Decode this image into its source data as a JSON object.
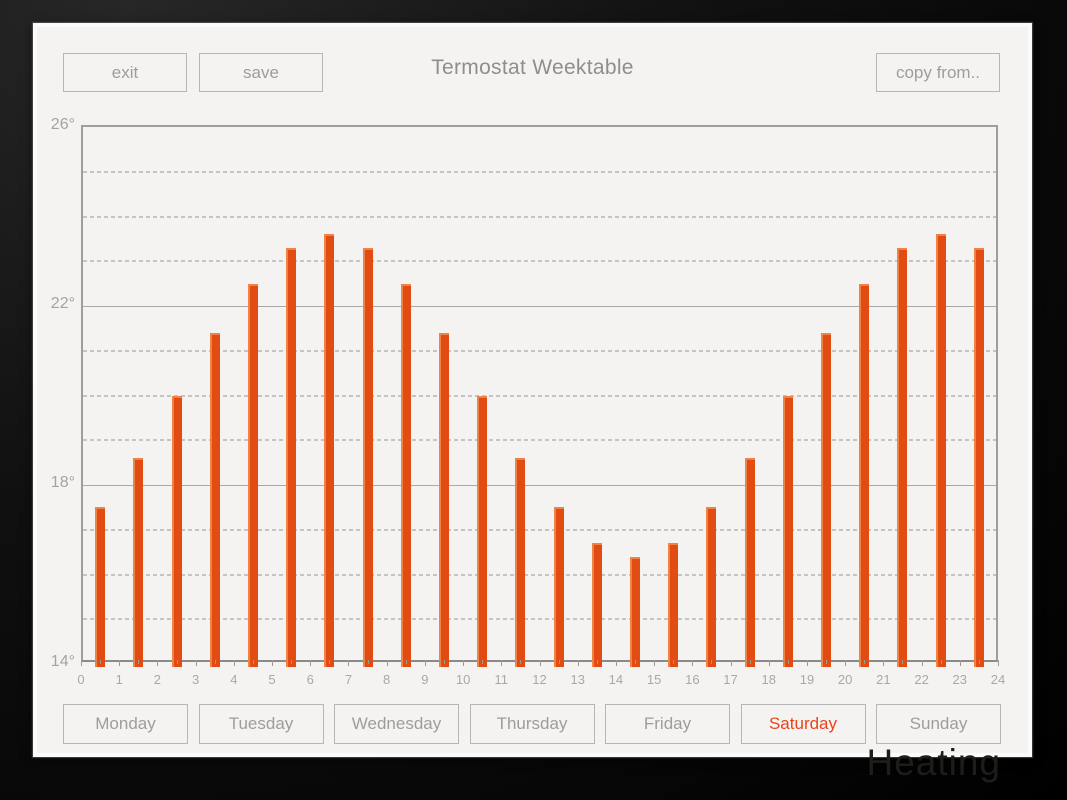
{
  "window": {
    "title": "Termostat Weektable",
    "watermark": "Heating"
  },
  "toolbar": {
    "exit_label": "exit",
    "save_label": "save",
    "copy_from_label": "copy from.."
  },
  "chart_data": {
    "type": "bar",
    "title": "Termostat Weektable",
    "x": [
      0,
      1,
      2,
      3,
      4,
      5,
      6,
      7,
      8,
      9,
      10,
      11,
      12,
      13,
      14,
      15,
      16,
      17,
      18,
      19,
      20,
      21,
      22,
      23
    ],
    "values": [
      17.5,
      18.6,
      20.0,
      21.4,
      22.5,
      23.3,
      23.6,
      23.3,
      22.5,
      21.4,
      20.0,
      18.6,
      17.5,
      16.7,
      16.4,
      16.7,
      17.5,
      18.6,
      20.0,
      21.4,
      22.5,
      23.3,
      23.6,
      23.3
    ],
    "xlabel": "",
    "ylabel": "",
    "ylim": [
      14,
      26
    ],
    "yticks": [
      26,
      22,
      18,
      14
    ],
    "ytick_labels": [
      "26°",
      "22°",
      "18°",
      "14°"
    ],
    "hour_labels": [
      "0",
      "1",
      "2",
      "3",
      "4",
      "5",
      "6",
      "7",
      "8",
      "9",
      "10",
      "11",
      "12",
      "13",
      "14",
      "15",
      "16",
      "17",
      "18",
      "19",
      "20",
      "21",
      "22",
      "23",
      "24"
    ],
    "solid_grid_degrees": [
      26,
      22,
      18,
      14
    ],
    "dashed_grid_degrees": [
      25,
      24,
      23,
      21,
      20,
      19,
      17,
      16,
      15
    ],
    "legend": "none",
    "grid": "on",
    "bar_color": "#e24c12",
    "bar_highlight_color": "#ee8247"
  },
  "days": [
    {
      "label": "Monday",
      "active": false
    },
    {
      "label": "Tuesday",
      "active": false
    },
    {
      "label": "Wednesday",
      "active": false
    },
    {
      "label": "Thursday",
      "active": false
    },
    {
      "label": "Friday",
      "active": false
    },
    {
      "label": "Saturday",
      "active": true
    },
    {
      "label": "Sunday",
      "active": false
    }
  ],
  "colors": {
    "accent": "#e24c12",
    "active_day_text": "#e8441c",
    "panel_bg": "#f4f3f2",
    "button_text": "#9d9d9d",
    "axis_text": "#a3a3a3"
  }
}
